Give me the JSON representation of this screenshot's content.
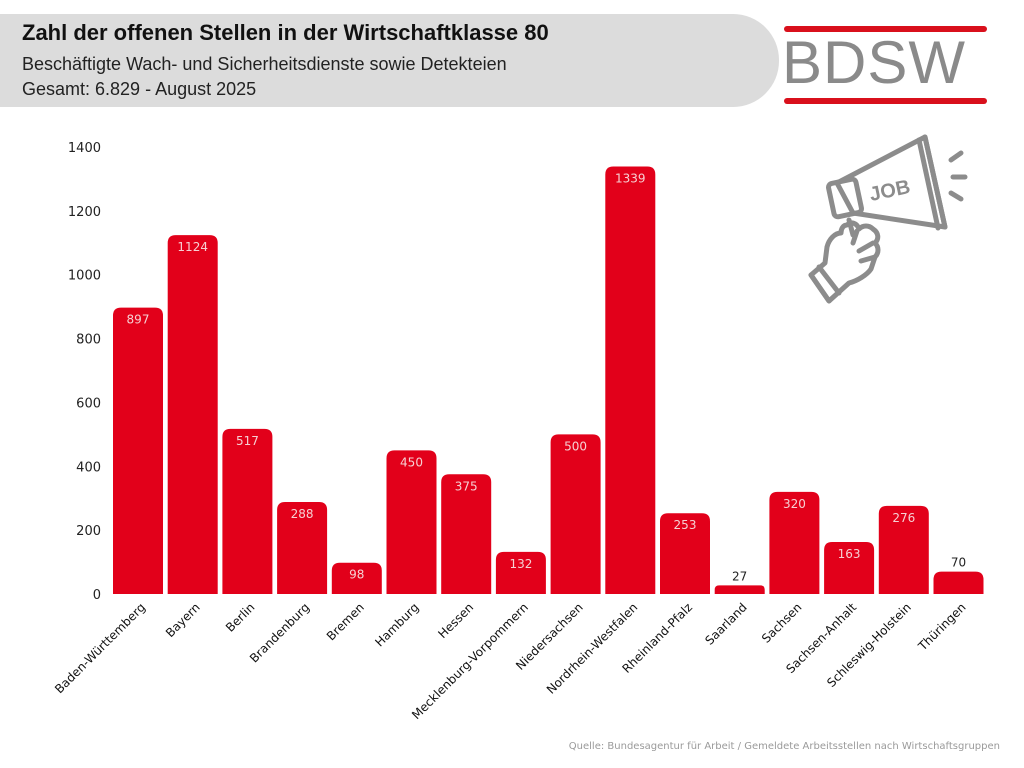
{
  "header": {
    "title": "Zahl der offenen Stellen in der Wirtschaftklasse 80",
    "subtitle": "Beschäftigte Wach- und Sicherheitsdienste sowie Detekteien",
    "total_line": "Gesamt: 6.829 - August 2025"
  },
  "logo": {
    "text": "BDSW",
    "accent_color": "#d9101c",
    "text_color": "#8a8a8a"
  },
  "illustration": {
    "icon": "megaphone-job-icon",
    "label": "JOB"
  },
  "source": "Quelle: Bundesagentur für Arbeit / Gemeldete Arbeitsstellen nach Wirtschaftsgruppen",
  "chart_data": {
    "type": "bar",
    "title": "Zahl der offenen Stellen in der Wirtschaftklasse 80",
    "xlabel": "",
    "ylabel": "",
    "ylim": [
      0,
      1400
    ],
    "yticks": [
      0,
      200,
      400,
      600,
      800,
      1000,
      1200,
      1400
    ],
    "grid": false,
    "legend": "none",
    "bar_color": "#e2001a",
    "categories": [
      "Baden-Württemberg",
      "Bayern",
      "Berlin",
      "Brandenburg",
      "Bremen",
      "Hamburg",
      "Hessen",
      "Mecklenburg-Vorpommern",
      "Niedersachsen",
      "Nordrhein-Westfalen",
      "Rheinland-Pfalz",
      "Saarland",
      "Sachsen",
      "Sachsen-Anhalt",
      "Schleswig-Holstein",
      "Thüringen"
    ],
    "values": [
      897,
      1124,
      517,
      288,
      98,
      450,
      375,
      132,
      500,
      1339,
      253,
      27,
      320,
      163,
      276,
      70
    ]
  }
}
